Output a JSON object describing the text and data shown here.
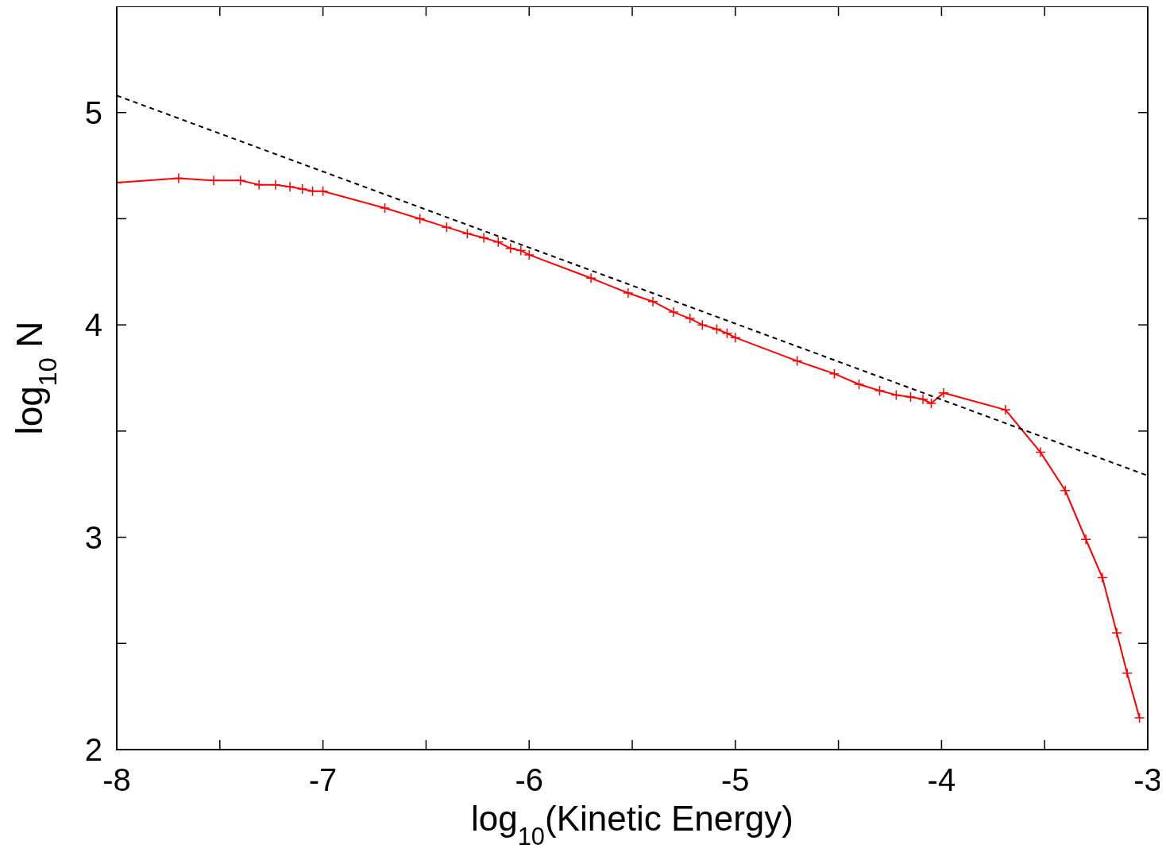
{
  "chart_data": {
    "type": "line",
    "xlabel": "log$_{10}$(Kinetic Energy)",
    "ylabel": "log$_{10}$ N",
    "xlim": [
      -8,
      -3
    ],
    "ylim": [
      2,
      5.5
    ],
    "xticks": [
      -8,
      {
        "value": -7.5,
        "label": null
      },
      -7,
      {
        "value": -6.5,
        "label": null
      },
      -6,
      {
        "value": -5.5,
        "label": null
      },
      -5,
      {
        "value": -4.5,
        "label": null
      },
      -4,
      {
        "value": -3.5,
        "label": null
      },
      -3
    ],
    "yticks": [
      2,
      {
        "value": 2.5,
        "label": null
      },
      3,
      {
        "value": 3.5,
        "label": null
      },
      4,
      {
        "value": 4.5,
        "label": null
      },
      5
    ],
    "grid": false,
    "series": [
      {
        "color": "#ff0000",
        "marker": "cross",
        "line_style": "solid",
        "x": [
          -8,
          -7.7,
          -7.53,
          -7.4,
          -7.31,
          -7.23,
          -7.16,
          -7.1,
          -7.05,
          -7.0,
          -6.7,
          -6.53,
          -6.4,
          -6.3,
          -6.22,
          -6.15,
          -6.09,
          -6.04,
          -6.0,
          -5.7,
          -5.52,
          -5.4,
          -5.3,
          -5.22,
          -5.16,
          -5.09,
          -5.04,
          -5.0,
          -4.7,
          -4.52,
          -4.4,
          -4.3,
          -4.22,
          -4.15,
          -4.09,
          -4.05,
          -3.99,
          -3.69,
          -3.52,
          -3.4,
          -3.3,
          -3.22,
          -3.15,
          -3.1,
          -3.04
        ],
        "values": [
          4.67,
          4.69,
          4.68,
          4.68,
          4.66,
          4.66,
          4.65,
          4.64,
          4.63,
          4.63,
          4.55,
          4.5,
          4.46,
          4.43,
          4.41,
          4.39,
          4.36,
          4.35,
          4.33,
          4.22,
          4.15,
          4.11,
          4.06,
          4.03,
          4.0,
          3.98,
          3.96,
          3.94,
          3.83,
          3.77,
          3.72,
          3.69,
          3.67,
          3.66,
          3.65,
          3.63,
          3.68,
          3.6,
          3.4,
          3.22,
          2.99,
          2.81,
          2.55,
          2.36,
          2.15
        ]
      },
      {
        "type": "line",
        "color": "#000000",
        "marker": "none",
        "line_style": "dashed",
        "x": [
          -8,
          -3
        ],
        "values": [
          5.08,
          3.29
        ]
      }
    ]
  }
}
